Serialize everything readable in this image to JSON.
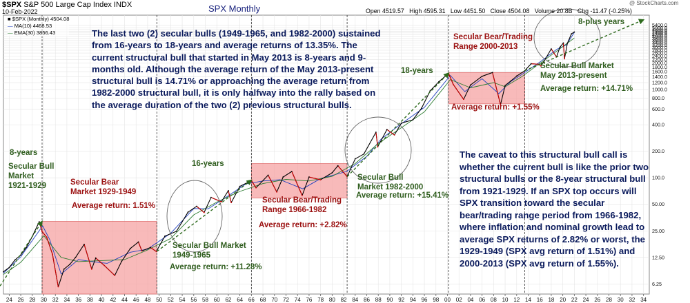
{
  "header": {
    "ticker": "$SPX",
    "index_name": "S&P 500 Large Cap Index",
    "exchange": "INDX",
    "date": "10-Feb-2022",
    "chart_title": "SPX Monthly",
    "open_label": "Open",
    "open": "4519.57",
    "high_label": "High",
    "high": "4595.31",
    "low_label": "Low",
    "low": "4451.50",
    "close_label": "Close",
    "close": "4504.08",
    "volume_label": "Volume",
    "volume": "20.8B",
    "chg_label": "Chg",
    "chg": "-11.47 (-0.25%)",
    "watermark": "@ StockCharts.com"
  },
  "legend": {
    "spx": "$SPX (Monthly) 4504.08",
    "ma": "MA(10) 4468.53",
    "ema": "EMA(30) 3856.43"
  },
  "annotations": {
    "intro": "The last two (2) secular bulls (1949-1965, and 1982-2000) sustained from 16-years to 18-years and average returns of 13.35%. The current structural bull that started in May 2013 is 8-years and 9-months old. Although the average return of the May 2013-present structural bull is 14.71% or approaching the average return from 1982-2000 structural bull, it is only halfway into the rally based on the average duration of the two (2) previous structural bulls.",
    "caveat": "The caveat to this structural bull call is whether the current bull is like the prior two structural bulls or the 8-year structural bull from 1921-1929. If an SPX top occurs will SPX transition toward the secular bear/trading range period from 1966-1982, where inflation and nominal growth lead to average SPX returns of 2.82% or worst, the 1929-1949 (SPX avg return of 1.51%) and 2000-2013 (SPX avg return of 1.55%).",
    "bull_1921_years": "8-years",
    "bull_1921_title": "Secular Bull Market 1921-1929",
    "bear_1929_title": "Secular Bear Market 1929-1949",
    "bear_1929_return": "Average return: 1.51%",
    "bull_1949_years": "16-years",
    "bull_1949_title": "Secular Bull Market 1949-1965",
    "bull_1949_return": "Average return: +11.28%",
    "bear_1966_title": "Secular Bear/Trading Range 1966-1982",
    "bear_1966_return": "Average return: +2.82%",
    "bull_1982_years": "18-years",
    "bull_1982_title": "Secular Bull Market 1982-2000",
    "bull_1982_return": "Average return: +15.41%",
    "bear_2000_title": "Secular Bear/Trading Range 2000-2013",
    "bear_2000_return": "Average return: +1.55%",
    "bull_2013_years": "8-plus years",
    "bull_2013_title": "Secular Bull Market May 2013-present",
    "bull_2013_return": "Average return: +14.71%"
  },
  "colors": {
    "bear_fill": "#f5a3a3",
    "bear_border": "#e07070",
    "price_up": "#000000",
    "price_down": "#cc0000",
    "ma_line": "#1f3fbf",
    "ema_line": "#2e7d32",
    "trend_line": "#2e6b1e",
    "navy_text": "#0a1a5c",
    "red_text": "#9b1010",
    "green_text": "#2f5d1e"
  },
  "chart_data": {
    "type": "line",
    "title": "SPX Monthly",
    "y_scale": "log",
    "xlim": [
      1923,
      2035
    ],
    "ylim": [
      4.8,
      7000
    ],
    "x_ticks": [
      "24",
      "26",
      "28",
      "30",
      "32",
      "34",
      "36",
      "38",
      "40",
      "42",
      "44",
      "46",
      "48",
      "50",
      "52",
      "54",
      "56",
      "58",
      "60",
      "62",
      "64",
      "66",
      "68",
      "70",
      "72",
      "74",
      "76",
      "78",
      "80",
      "82",
      "84",
      "86",
      "88",
      "90",
      "92",
      "94",
      "96",
      "98",
      "00",
      "02",
      "04",
      "06",
      "08",
      "10",
      "12",
      "14",
      "16",
      "18",
      "20",
      "22",
      "24",
      "26",
      "28",
      "30",
      "32",
      "34"
    ],
    "y_ticks": [
      "6.25",
      "12.50",
      "25.00",
      "50.00",
      "100.0",
      "200.0",
      "400.0",
      "600.0",
      "800.0",
      "1000.0",
      "1200.0",
      "1400.0",
      "1600.0",
      "1800.0",
      "2000.0",
      "2200.0",
      "2400.0",
      "2600.0",
      "2800.0",
      "3000.0",
      "3200.0",
      "3400.0",
      "3600.0",
      "3800.0",
      "4000.0",
      "4200.0",
      "4400.0",
      "4600.0",
      "4800.0",
      "5000.0",
      "5400.0"
    ],
    "series": [
      {
        "name": "$SPX (Monthly)",
        "x": [
          1923,
          1924,
          1925,
          1926,
          1927,
          1928,
          1929.2,
          1929.7,
          1930.5,
          1931.5,
          1932.5,
          1933.5,
          1934.5,
          1935.5,
          1937,
          1938.3,
          1939,
          1940.5,
          1942.3,
          1943.5,
          1945,
          1946.4,
          1947,
          1948.5,
          1949.5,
          1951,
          1953,
          1955,
          1956.5,
          1957.8,
          1959,
          1960.8,
          1962,
          1962.5,
          1964,
          1966,
          1966.8,
          1968.9,
          1970.4,
          1971.5,
          1973,
          1974.8,
          1976,
          1978,
          1980,
          1981,
          1982.6,
          1984,
          1985.5,
          1987.6,
          1987.9,
          1989.5,
          1990.8,
          1992,
          1994,
          1995.5,
          1997,
          1998.5,
          2000.2,
          2001,
          2002.8,
          2004,
          2006,
          2007.8,
          2009.2,
          2010,
          2011,
          2012,
          2013.4,
          2014.5,
          2015.8,
          2016.2,
          2017,
          2018,
          2018.9,
          2019.5,
          2020.1,
          2020.3,
          2020.8,
          2021.5,
          2022
        ],
        "y": [
          8.6,
          9.6,
          11.7,
          13.3,
          16.3,
          21.6,
          31.7,
          24.5,
          21.2,
          13.6,
          5.8,
          9.2,
          10.4,
          12.5,
          17.6,
          9.2,
          12.3,
          10.1,
          7.8,
          11.3,
          15.8,
          18.7,
          14.8,
          16.2,
          14.6,
          21.8,
          24.7,
          40.7,
          47.5,
          40.4,
          59.9,
          53.5,
          71.5,
          52.3,
          80,
          93,
          77,
          107,
          69,
          102,
          118,
          63,
          102,
          95,
          114,
          137,
          103,
          164,
          186,
          329,
          224,
          353,
          306,
          417,
          455,
          615,
          970,
          1229,
          1527,
          1148,
          776,
          1130,
          1418,
          1565,
          676,
          1115,
          1257,
          1426,
          1640,
          1967,
          1940,
          1860,
          2238,
          2900,
          2351,
          3025,
          3386,
          2237,
          3363,
          4297,
          4504
        ]
      },
      {
        "name": "MA(10)",
        "x": [
          1923,
          1926,
          1929.8,
          1931,
          1933,
          1936,
          1938.8,
          1941,
          1945,
          1948,
          1952,
          1956,
          1958.5,
          1962,
          1965,
          1968,
          1971,
          1974.9,
          1978,
          1982.5,
          1986,
          1988.5,
          1992,
          1996,
          2000.5,
          2003,
          2006,
          2008.9,
          2011,
          2013,
          2016,
          2019,
          2020.6,
          2022
        ],
        "y": [
          8.3,
          12.7,
          28.5,
          20,
          8.1,
          11.8,
          11.1,
          10.7,
          14.3,
          15.5,
          23.5,
          44.8,
          44.5,
          62.5,
          85,
          92,
          95,
          75,
          98,
          118,
          175,
          275,
          410,
          630,
          1450,
          950,
          1330,
          900,
          1240,
          1500,
          2050,
          2880,
          3200,
          4468
        ]
      },
      {
        "name": "EMA(30)",
        "x": [
          1923,
          1926,
          1930,
          1933,
          1936,
          1940,
          1944,
          1948,
          1952,
          1956,
          1960,
          1964,
          1968,
          1972,
          1976,
          1980,
          1984,
          1988,
          1992,
          1996,
          2000.5,
          2004,
          2008,
          2010,
          2013,
          2016,
          2019,
          2022
        ],
        "y": [
          8.0,
          11,
          22,
          12.5,
          11.2,
          11.5,
          11.8,
          15.2,
          20.5,
          38,
          53,
          70,
          86,
          96,
          92,
          104,
          145,
          245,
          370,
          560,
          1300,
          1050,
          1200,
          1080,
          1420,
          1980,
          2750,
          3856
        ]
      }
    ],
    "regions": [
      {
        "label": "Secular Bear Market 1929-1949",
        "x": [
          1929.7,
          1949.6
        ],
        "y": [
          4.8,
          32
        ]
      },
      {
        "label": "Secular Bear/Trading Range 1966-1982",
        "x": [
          1966,
          1982.6
        ],
        "y": [
          59,
          145
        ]
      },
      {
        "label": "Secular Bear/Trading Range 2000-2013",
        "x": [
          2000.2,
          2013.4
        ],
        "y": [
          690,
          1560
        ]
      }
    ],
    "trend_arrows": [
      {
        "label": "8-years",
        "x": [
          1921.5,
          1929.7
        ],
        "y": [
          4.8,
          32
        ]
      },
      {
        "label": "16-years",
        "x": [
          1949.6,
          1966
        ],
        "y": [
          14.6,
          94
        ]
      },
      {
        "label": "18-years",
        "x": [
          1982.6,
          2000.2
        ],
        "y": [
          103,
          1540
        ]
      },
      {
        "label": "8-plus years",
        "x": [
          2013.4,
          2034
        ],
        "y": [
          1640,
          6200
        ]
      }
    ],
    "vertical_markers": [
      1929.7,
      1949.6,
      1966,
      1982.6,
      2000.2,
      2013.4
    ],
    "grid": true
  }
}
